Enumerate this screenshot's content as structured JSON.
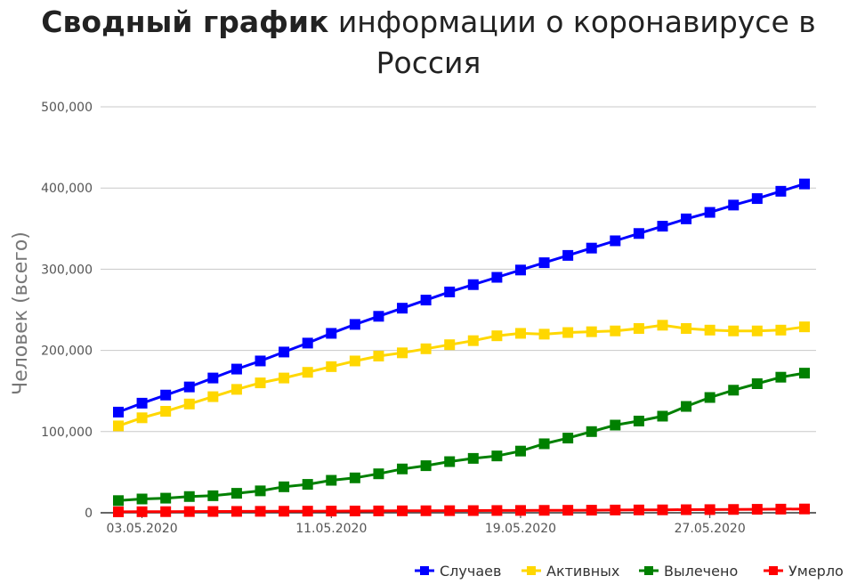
{
  "title": {
    "bold": "Сводный график",
    "rest_line1": " информации о коронавирусе в",
    "rest_line2": "Россия"
  },
  "chart_data": {
    "type": "line",
    "ylabel": "Человек (всего)",
    "ylim": [
      0,
      500000
    ],
    "yticks": [
      "0",
      "100,000",
      "200,000",
      "300,000",
      "400,000",
      "500,000"
    ],
    "ytick_values": [
      0,
      100000,
      200000,
      300000,
      400000,
      500000
    ],
    "xticks": [
      "03.05.2020",
      "11.05.2020",
      "19.05.2020",
      "27.05.2020"
    ],
    "xtick_index": [
      1,
      9,
      17,
      25
    ],
    "x": [
      "02.05.2020",
      "03.05.2020",
      "04.05.2020",
      "05.05.2020",
      "06.05.2020",
      "07.05.2020",
      "08.05.2020",
      "09.05.2020",
      "10.05.2020",
      "11.05.2020",
      "12.05.2020",
      "13.05.2020",
      "14.05.2020",
      "15.05.2020",
      "16.05.2020",
      "17.05.2020",
      "18.05.2020",
      "19.05.2020",
      "20.05.2020",
      "21.05.2020",
      "22.05.2020",
      "23.05.2020",
      "24.05.2020",
      "25.05.2020",
      "26.05.2020",
      "27.05.2020",
      "28.05.2020",
      "29.05.2020",
      "30.05.2020",
      "31.05.2020"
    ],
    "grid": true,
    "legend": "bottom-right",
    "series": [
      {
        "name": "Случаев",
        "color": "#0000ff",
        "values": [
          124000,
          135000,
          145000,
          155000,
          166000,
          177000,
          187000,
          198000,
          209000,
          221000,
          232000,
          242000,
          252000,
          262000,
          272000,
          281000,
          290000,
          299000,
          308000,
          317000,
          326000,
          335000,
          344000,
          353000,
          362000,
          370000,
          379000,
          387000,
          396000,
          405000
        ]
      },
      {
        "name": "Активных",
        "color": "#ffd700",
        "values": [
          107000,
          117000,
          125000,
          134000,
          143000,
          152000,
          160000,
          166000,
          173000,
          180000,
          187000,
          193000,
          197000,
          202000,
          207000,
          212000,
          218000,
          221000,
          220000,
          222000,
          223000,
          224000,
          227000,
          231000,
          227000,
          225000,
          224000,
          224000,
          225000,
          229000
        ]
      },
      {
        "name": "Вылечено",
        "color": "#008000",
        "values": [
          15000,
          17000,
          18000,
          20000,
          21000,
          24000,
          27000,
          32000,
          35000,
          40000,
          43000,
          48000,
          54000,
          58000,
          63000,
          67000,
          70000,
          76000,
          85000,
          92000,
          100000,
          108000,
          113000,
          119000,
          131000,
          142000,
          151000,
          159000,
          167000,
          172000
        ]
      },
      {
        "name": "Умерло",
        "color": "#ff0000",
        "values": [
          1200,
          1300,
          1400,
          1500,
          1600,
          1700,
          1800,
          1900,
          2000,
          2100,
          2200,
          2300,
          2400,
          2500,
          2600,
          2700,
          2800,
          2900,
          3000,
          3100,
          3200,
          3400,
          3500,
          3600,
          3800,
          3900,
          4100,
          4300,
          4500,
          4700
        ]
      }
    ]
  }
}
